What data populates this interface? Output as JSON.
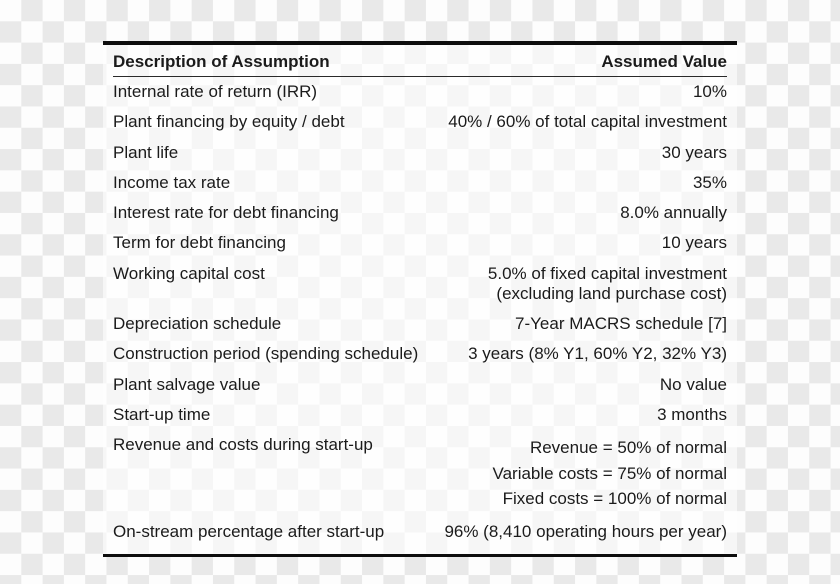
{
  "table": {
    "header": {
      "desc": "Description of Assumption",
      "value": "Assumed Value"
    },
    "rows": [
      {
        "desc": "Internal rate of return (IRR)",
        "value": "10%"
      },
      {
        "desc": "Plant financing by equity / debt",
        "value": "40% / 60% of total capital investment"
      },
      {
        "desc": "Plant life",
        "value": "30 years"
      },
      {
        "desc": "Income tax rate",
        "value": "35%"
      },
      {
        "desc": "Interest rate for debt financing",
        "value": "8.0% annually"
      },
      {
        "desc": "Term for debt financing",
        "value": "10 years"
      },
      {
        "desc": "Working capital cost",
        "value_lines": [
          "5.0% of fixed capital investment",
          "(excluding land purchase cost)"
        ]
      },
      {
        "desc": "Depreciation schedule",
        "value": "7-Year MACRS schedule [7]"
      },
      {
        "desc": "Construction period (spending schedule)",
        "value": "3 years (8% Y1, 60% Y2, 32% Y3)"
      },
      {
        "desc": "Plant salvage value",
        "value": "No value"
      },
      {
        "desc": "Start-up time",
        "value": "3 months"
      },
      {
        "desc": "Revenue and costs during start-up",
        "value_lines": [
          "Revenue = 50% of normal",
          "Variable costs = 75% of normal",
          "Fixed costs = 100% of normal"
        ]
      },
      {
        "desc": "On-stream percentage after start-up",
        "value": "96% (8,410 operating hours per year)"
      }
    ]
  },
  "colors": {
    "checker_light": "#fdfdfd",
    "checker_dark": "#e9e9e9",
    "panel_background": "#ffffff",
    "text": "#1b1b1b",
    "rule": "#0d0d0d"
  }
}
